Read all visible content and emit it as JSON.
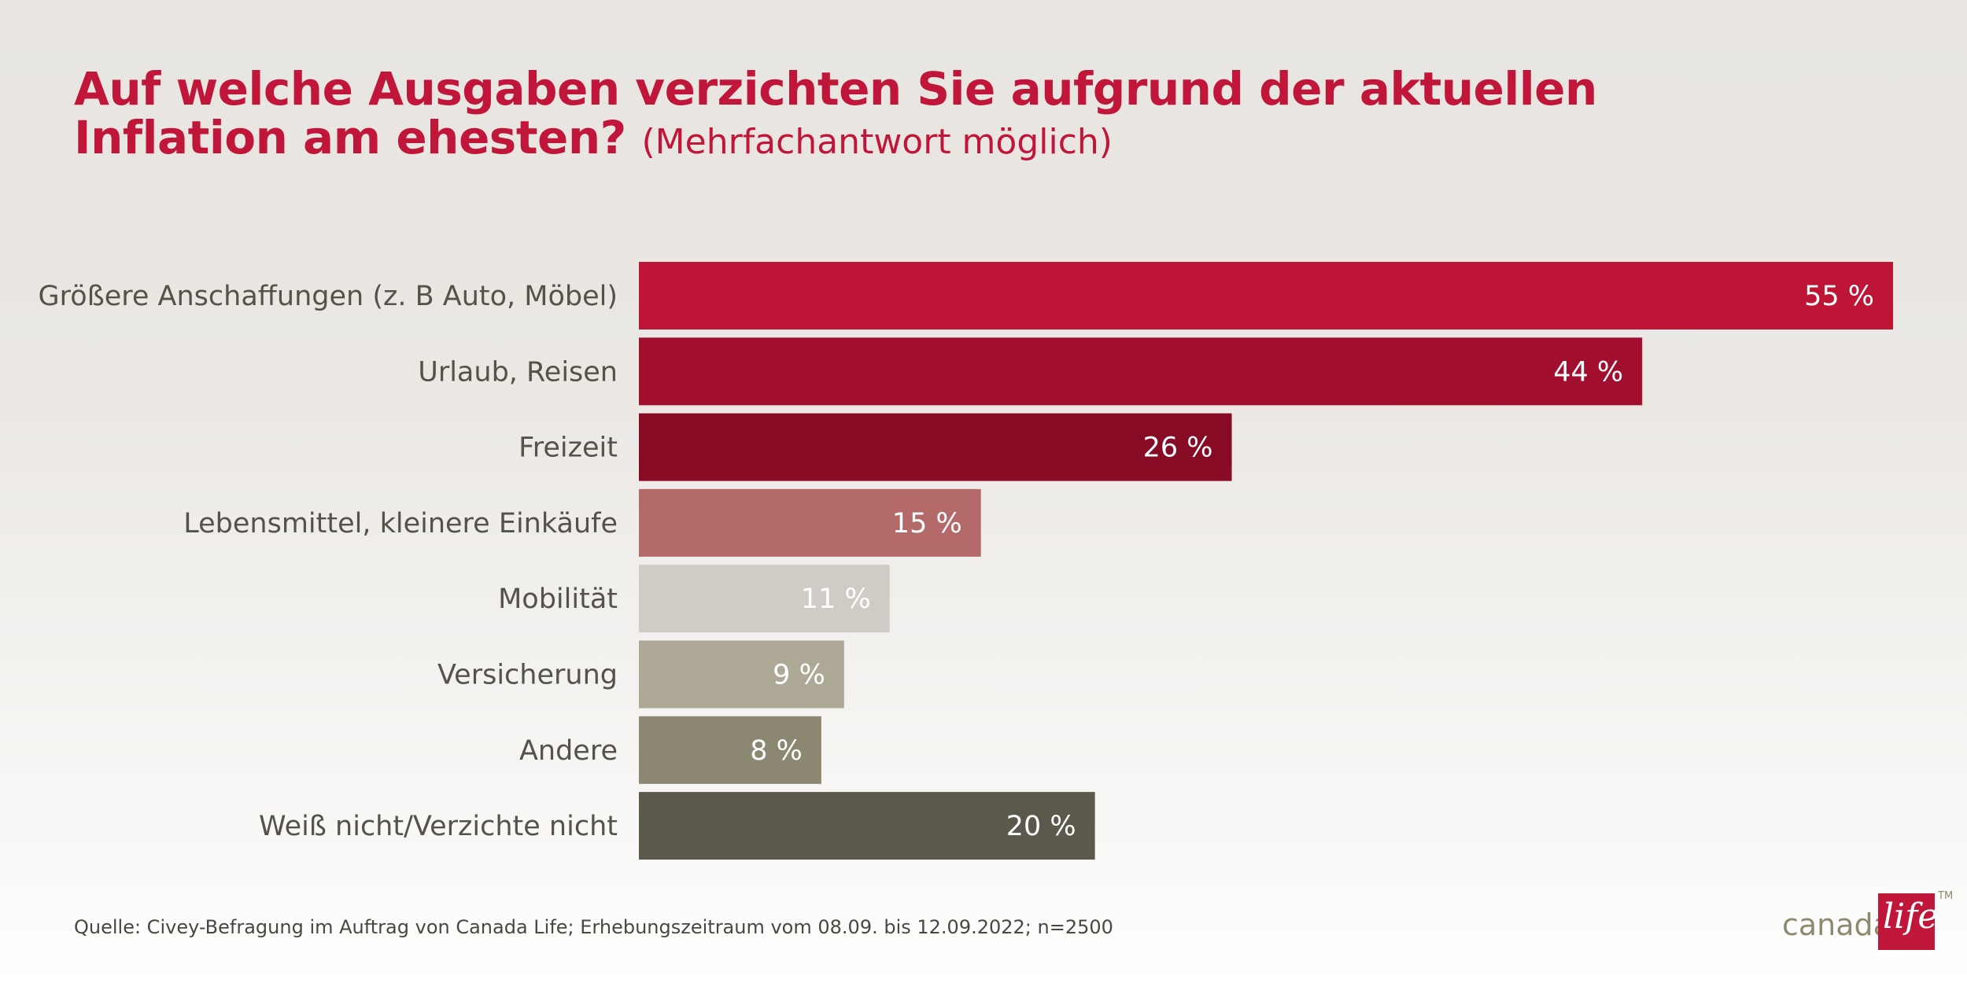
{
  "title": {
    "main": "Auf welche Ausgaben verzichten Sie aufgrund der aktuellen Inflation am ehesten?",
    "sub": "(Mehrfachantwort möglich)"
  },
  "chart_data": {
    "type": "bar",
    "orientation": "horizontal",
    "categories": [
      "Größere Anschaffungen (z. B Auto, Möbel)",
      "Urlaub, Reisen",
      "Freizeit",
      "Lebensmittel, kleinere Einkäufe",
      "Mobilität",
      "Versicherung",
      "Andere",
      "Weiß nicht/Verzichte nicht"
    ],
    "values": [
      55,
      44,
      26,
      15,
      11,
      9,
      8,
      20
    ],
    "value_labels": [
      "55 %",
      "44 %",
      "26 %",
      "15 %",
      "11 %",
      "9 %",
      "8 %",
      "20 %"
    ],
    "colors": [
      "#be1536",
      "#a20e2e",
      "#870b25",
      "#b56a6a",
      "#d0ccc5",
      "#aea897",
      "#8c8771",
      "#5b594b"
    ],
    "xlim": [
      0,
      55
    ],
    "grid": false,
    "legend": "none"
  },
  "source": "Quelle: Civey-Befragung im Auftrag von Canada Life; Erhebungszeitraum vom 08.09. bis 12.09.2022; n=2500",
  "logo": {
    "word": "canada",
    "script": "life",
    "tm": "TM"
  }
}
